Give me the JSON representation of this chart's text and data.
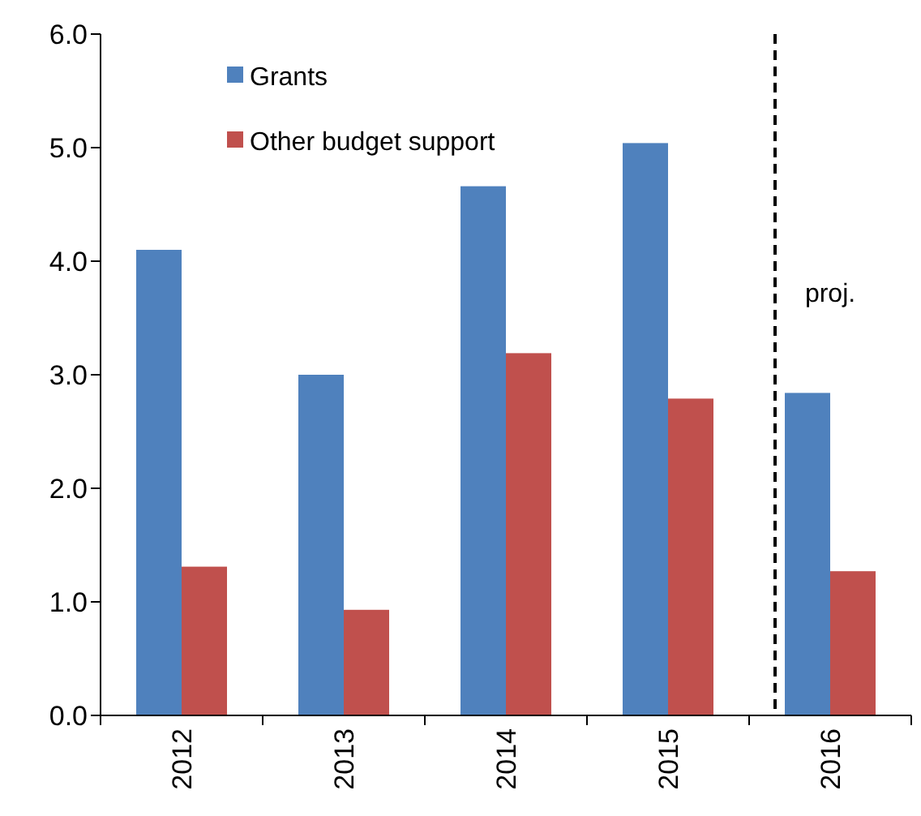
{
  "chart_data": {
    "type": "bar",
    "categories": [
      "2012",
      "2013",
      "2014",
      "2015",
      "2016"
    ],
    "series": [
      {
        "name": "Grants",
        "color": "#4f81bd",
        "values": [
          4.1,
          3.0,
          4.66,
          5.04,
          2.84
        ]
      },
      {
        "name": "Other budget support",
        "color": "#c0504d",
        "values": [
          1.31,
          0.93,
          3.19,
          2.79,
          1.27
        ]
      }
    ],
    "ylim": [
      0,
      6
    ],
    "yticks": [
      {
        "value": 0,
        "label": "0.0"
      },
      {
        "value": 1,
        "label": "1.0"
      },
      {
        "value": 2,
        "label": "2.0"
      },
      {
        "value": 3,
        "label": "3.0"
      },
      {
        "value": 4,
        "label": "4.0"
      },
      {
        "value": 5,
        "label": "5.0"
      },
      {
        "value": 6,
        "label": "6.0"
      }
    ],
    "ref_lines": [
      {
        "axis": "x",
        "value": "2016",
        "line_style": "dashed",
        "color": "#000000"
      }
    ],
    "annotations": [
      "proj."
    ],
    "legend": "top left",
    "grid": false
  }
}
